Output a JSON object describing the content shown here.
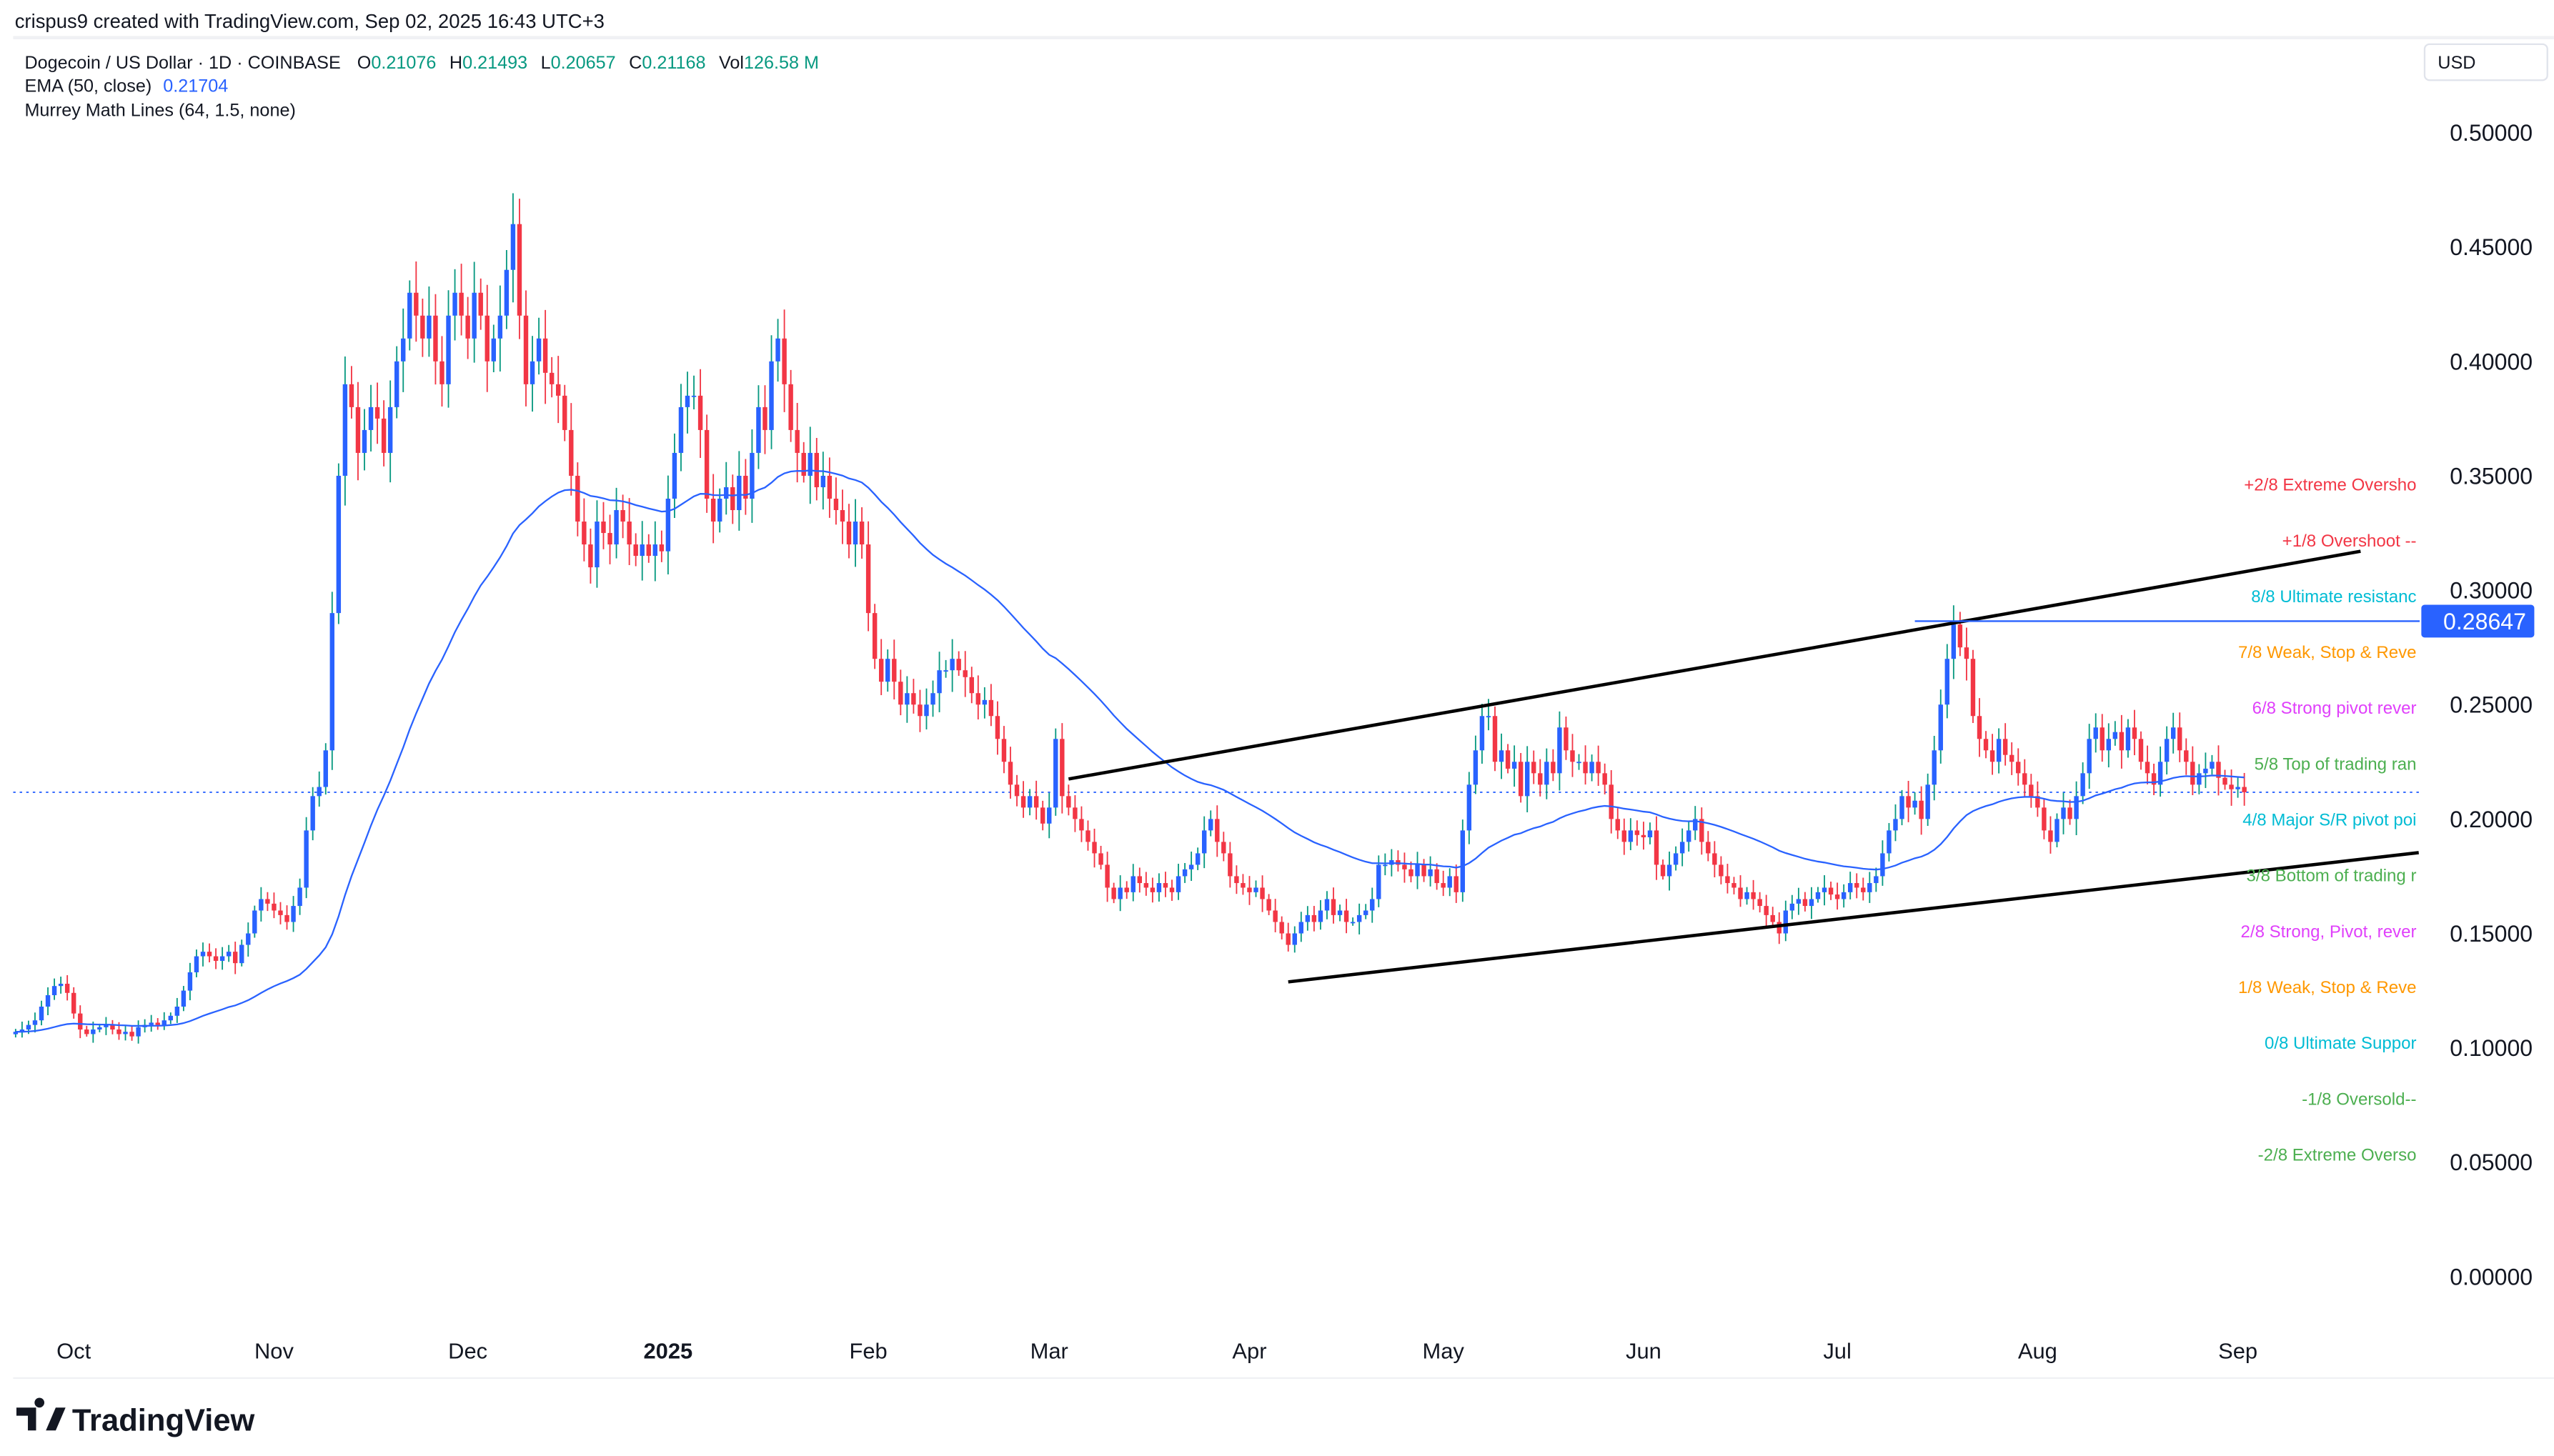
{
  "watermark_text": "crispus9 created with TradingView.com, Sep 02, 2025 16:43 UTC+3",
  "legend": {
    "symbol": "Dogecoin / US Dollar · 1D · COINBASE",
    "o_label": "O",
    "o": "0.21076",
    "h_label": "H",
    "h": "0.21493",
    "l_label": "L",
    "l": "0.20657",
    "c_label": "C",
    "c": "0.21168",
    "vol_label": "Vol",
    "vol": "126.58 M",
    "ema_label": "EMA (50, close)",
    "ema_value": "0.21704",
    "murrey_label": "Murrey Math Lines (64, 1.5, none)"
  },
  "currency_button": "USD",
  "logo_text": "TradingView",
  "colors": {
    "up_body": "#2962ff",
    "up_wick": "#089981",
    "down": "#f23645",
    "ema": "#2962ff",
    "value_green": "#089981",
    "price_tag": "#2962ff"
  },
  "chart_data": {
    "type": "candlestick",
    "start_date": "2024-09-22",
    "interval": "1D",
    "ylim": [
      0,
      0.52
    ],
    "grid": false,
    "y_ticks": [
      "0.50000",
      "0.45000",
      "0.40000",
      "0.35000",
      "0.30000",
      "0.25000",
      "0.20000",
      "0.15000",
      "0.10000",
      "0.05000",
      "0.00000"
    ],
    "x_ticks": [
      {
        "label": "Oct",
        "date": "2024-10-01"
      },
      {
        "label": "Nov",
        "date": "2024-11-01"
      },
      {
        "label": "Dec",
        "date": "2024-12-01"
      },
      {
        "label": "2025",
        "date": "2025-01-01",
        "bold": true
      },
      {
        "label": "Feb",
        "date": "2025-02-01"
      },
      {
        "label": "Mar",
        "date": "2025-03-01"
      },
      {
        "label": "Apr",
        "date": "2025-04-01"
      },
      {
        "label": "May",
        "date": "2025-05-01"
      },
      {
        "label": "Jun",
        "date": "2025-06-01"
      },
      {
        "label": "Jul",
        "date": "2025-07-01"
      },
      {
        "label": "Aug",
        "date": "2025-08-01"
      },
      {
        "label": "Sep",
        "date": "2025-09-01"
      }
    ],
    "close": [
      0.107,
      0.108,
      0.11,
      0.112,
      0.118,
      0.123,
      0.127,
      0.128,
      0.124,
      0.115,
      0.108,
      0.106,
      0.108,
      0.109,
      0.11,
      0.108,
      0.106,
      0.107,
      0.105,
      0.109,
      0.11,
      0.111,
      0.11,
      0.112,
      0.114,
      0.118,
      0.125,
      0.133,
      0.14,
      0.142,
      0.14,
      0.138,
      0.14,
      0.142,
      0.137,
      0.145,
      0.15,
      0.16,
      0.165,
      0.163,
      0.16,
      0.158,
      0.155,
      0.162,
      0.17,
      0.195,
      0.21,
      0.214,
      0.23,
      0.29,
      0.35,
      0.39,
      0.38,
      0.36,
      0.37,
      0.38,
      0.375,
      0.36,
      0.38,
      0.4,
      0.41,
      0.43,
      0.42,
      0.41,
      0.42,
      0.4,
      0.39,
      0.42,
      0.43,
      0.42,
      0.41,
      0.43,
      0.42,
      0.4,
      0.41,
      0.42,
      0.44,
      0.46,
      0.42,
      0.39,
      0.4,
      0.41,
      0.395,
      0.39,
      0.385,
      0.37,
      0.35,
      0.33,
      0.32,
      0.31,
      0.33,
      0.325,
      0.32,
      0.335,
      0.33,
      0.32,
      0.315,
      0.32,
      0.315,
      0.32,
      0.317,
      0.34,
      0.36,
      0.38,
      0.385,
      0.385,
      0.37,
      0.34,
      0.33,
      0.34,
      0.345,
      0.335,
      0.35,
      0.34,
      0.36,
      0.38,
      0.37,
      0.4,
      0.41,
      0.39,
      0.37,
      0.36,
      0.35,
      0.36,
      0.345,
      0.35,
      0.34,
      0.335,
      0.33,
      0.32,
      0.33,
      0.32,
      0.29,
      0.27,
      0.26,
      0.27,
      0.26,
      0.25,
      0.255,
      0.25,
      0.245,
      0.25,
      0.255,
      0.265,
      0.265,
      0.27,
      0.265,
      0.262,
      0.255,
      0.25,
      0.252,
      0.245,
      0.235,
      0.225,
      0.215,
      0.21,
      0.205,
      0.21,
      0.205,
      0.198,
      0.205,
      0.235,
      0.21,
      0.205,
      0.2,
      0.195,
      0.19,
      0.185,
      0.18,
      0.17,
      0.165,
      0.17,
      0.168,
      0.175,
      0.172,
      0.17,
      0.168,
      0.172,
      0.17,
      0.168,
      0.175,
      0.178,
      0.18,
      0.185,
      0.195,
      0.2,
      0.19,
      0.185,
      0.175,
      0.172,
      0.17,
      0.168,
      0.17,
      0.165,
      0.16,
      0.155,
      0.15,
      0.145,
      0.15,
      0.155,
      0.158,
      0.155,
      0.16,
      0.165,
      0.158,
      0.16,
      0.155,
      0.155,
      0.158,
      0.16,
      0.165,
      0.18,
      0.18,
      0.182,
      0.18,
      0.178,
      0.175,
      0.18,
      0.175,
      0.178,
      0.172,
      0.17,
      0.175,
      0.168,
      0.195,
      0.215,
      0.23,
      0.245,
      0.245,
      0.225,
      0.23,
      0.222,
      0.225,
      0.21,
      0.225,
      0.22,
      0.215,
      0.225,
      0.22,
      0.24,
      0.23,
      0.225,
      0.225,
      0.22,
      0.225,
      0.22,
      0.215,
      0.2,
      0.195,
      0.19,
      0.195,
      0.193,
      0.192,
      0.195,
      0.18,
      0.175,
      0.18,
      0.185,
      0.19,
      0.195,
      0.2,
      0.19,
      0.185,
      0.18,
      0.175,
      0.172,
      0.17,
      0.165,
      0.168,
      0.165,
      0.162,
      0.158,
      0.155,
      0.15,
      0.16,
      0.163,
      0.165,
      0.162,
      0.165,
      0.168,
      0.17,
      0.167,
      0.165,
      0.168,
      0.172,
      0.17,
      0.168,
      0.172,
      0.175,
      0.185,
      0.195,
      0.2,
      0.21,
      0.205,
      0.208,
      0.2,
      0.215,
      0.23,
      0.25,
      0.27,
      0.285,
      0.275,
      0.27,
      0.245,
      0.235,
      0.23,
      0.225,
      0.235,
      0.228,
      0.225,
      0.22,
      0.215,
      0.21,
      0.205,
      0.195,
      0.19,
      0.2,
      0.205,
      0.2,
      0.21,
      0.22,
      0.235,
      0.24,
      0.23,
      0.235,
      0.238,
      0.23,
      0.24,
      0.235,
      0.225,
      0.22,
      0.215,
      0.225,
      0.235,
      0.24,
      0.23,
      0.225,
      0.215,
      0.22,
      0.222,
      0.225,
      0.218,
      0.215,
      0.213,
      0.214,
      0.2117
    ],
    "ema_period": 50,
    "last_price": 0.21168,
    "trendlines": [
      {
        "from": {
          "date": "2025-03-04",
          "price": 0.2175
        },
        "to": {
          "date": "2025-09-20",
          "price": 0.317
        }
      },
      {
        "from": {
          "date": "2025-04-07",
          "price": 0.1288
        },
        "to": {
          "date": "2025-09-29",
          "price": 0.1853
        }
      }
    ],
    "horizontal_line": {
      "from_date": "2025-07-13",
      "price": 0.28647,
      "label": "0.28647"
    },
    "murrey_levels": [
      {
        "label": "+2/8 Extreme Oversho",
        "price": 0.3464,
        "color": "#f23645"
      },
      {
        "label": "+1/8 Overshoot --",
        "price": 0.322,
        "color": "#f23645"
      },
      {
        "label": "8/8 Ultimate resistanc",
        "price": 0.2976,
        "color": "#00bcd4"
      },
      {
        "label": "7/8 Weak, Stop & Reve",
        "price": 0.2732,
        "color": "#ff9800"
      },
      {
        "label": "6/8 Strong pivot rever",
        "price": 0.2488,
        "color": "#e040fb"
      },
      {
        "label": "5/8 Top of trading ran",
        "price": 0.2244,
        "color": "#4caf50"
      },
      {
        "label": "4/8 Major S/R pivot poi",
        "price": 0.2,
        "color": "#00bcd4"
      },
      {
        "label": "3/8 Bottom of trading r",
        "price": 0.1756,
        "color": "#4caf50"
      },
      {
        "label": "2/8 Strong, Pivot, rever",
        "price": 0.1512,
        "color": "#e040fb"
      },
      {
        "label": "1/8 Weak, Stop & Reve",
        "price": 0.1268,
        "color": "#ff9800"
      },
      {
        "label": "0/8 Ultimate Suppor",
        "price": 0.1024,
        "color": "#00bcd4"
      },
      {
        "label": "-1/8 Oversold--",
        "price": 0.078,
        "color": "#4caf50"
      },
      {
        "label": "-2/8 Extreme Overso",
        "price": 0.0536,
        "color": "#4caf50"
      }
    ]
  }
}
